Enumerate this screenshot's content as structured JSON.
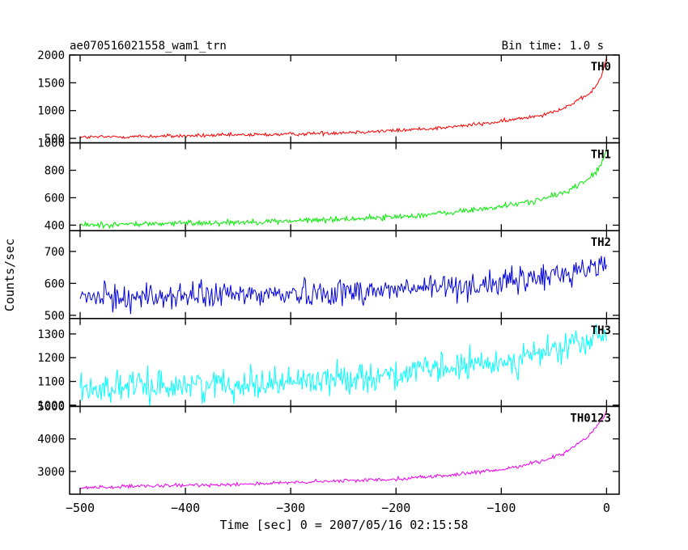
{
  "header": {
    "title": "ae070516021558_wam1_trn",
    "bin_time": "Bin time: 1.0 s"
  },
  "chart_data": {
    "type": "line",
    "title": "ae070516021558_wam1_trn",
    "subtitle": "Bin time: 1.0 s",
    "xlabel": "Time [sec] 0 = 2007/05/16 02:15:58",
    "ylabel": "Counts/sec",
    "xlim": [
      -510,
      12
    ],
    "x_ticks": [
      -500,
      -400,
      -300,
      -200,
      -100,
      0
    ],
    "x_tick_labels": [
      "−500",
      "−400",
      "−300",
      "−200",
      "−100",
      "0"
    ],
    "panels": [
      {
        "name": "TH0",
        "color": "#ff0000",
        "ylim": [
          420,
          2000
        ],
        "y_ticks": [
          500,
          1000,
          1500,
          2000
        ],
        "y_tick_labels": [
          "500",
          "1000",
          "1500",
          "2000"
        ],
        "trend": {
          "x": [
            -500,
            -400,
            -300,
            -200,
            -150,
            -100,
            -60,
            -40,
            -20,
            -10,
            -5,
            0
          ],
          "y": [
            520,
            545,
            575,
            640,
            700,
            800,
            930,
            1050,
            1250,
            1430,
            1620,
            1950
          ]
        },
        "noise": 25
      },
      {
        "name": "TH1",
        "color": "#00ee00",
        "ylim": [
          360,
          1000
        ],
        "y_ticks": [
          400,
          600,
          800,
          1000
        ],
        "y_tick_labels": [
          "400",
          "600",
          "800",
          "1000"
        ],
        "trend": {
          "x": [
            -500,
            -400,
            -300,
            -200,
            -150,
            -100,
            -60,
            -40,
            -20,
            -10,
            -5,
            0
          ],
          "y": [
            400,
            415,
            430,
            460,
            490,
            535,
            590,
            640,
            720,
            790,
            840,
            950
          ]
        },
        "noise": 15
      },
      {
        "name": "TH2",
        "color": "#0000dd",
        "ylim": [
          490,
          765
        ],
        "y_ticks": [
          500,
          600,
          700
        ],
        "y_tick_labels": [
          "500",
          "600",
          "700"
        ],
        "trend": {
          "x": [
            -500,
            -400,
            -300,
            -200,
            -100,
            -50,
            0
          ],
          "y": [
            555,
            560,
            568,
            580,
            600,
            625,
            660
          ]
        },
        "noise": 30
      },
      {
        "name": "TH3",
        "color": "#00ffff",
        "ylim": [
          995,
          1365
        ],
        "y_ticks": [
          1000,
          1100,
          1200,
          1300
        ],
        "y_tick_labels": [
          "1000",
          "1100",
          "1200",
          "1300"
        ],
        "trend": {
          "x": [
            -500,
            -400,
            -300,
            -200,
            -100,
            -50,
            0
          ],
          "y": [
            1070,
            1085,
            1100,
            1130,
            1180,
            1230,
            1290
          ]
        },
        "noise": 45
      },
      {
        "name": "TH0123",
        "color": "#ee00ee",
        "ylim": [
          2300,
          5000
        ],
        "y_ticks": [
          3000,
          4000,
          5000
        ],
        "y_tick_labels": [
          "3000",
          "4000",
          "5000"
        ],
        "trend": {
          "x": [
            -500,
            -400,
            -300,
            -200,
            -150,
            -100,
            -60,
            -40,
            -20,
            -10,
            -5,
            0
          ],
          "y": [
            2500,
            2570,
            2650,
            2770,
            2880,
            3050,
            3330,
            3580,
            4000,
            4350,
            4560,
            4850
          ]
        },
        "noise": 40
      }
    ]
  }
}
